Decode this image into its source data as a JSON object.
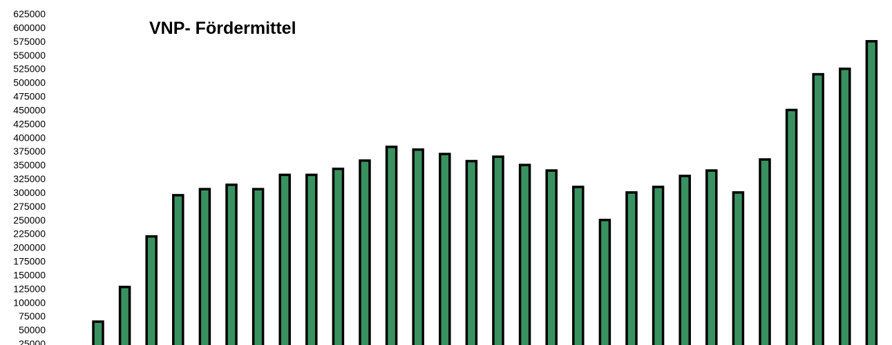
{
  "chart_data": {
    "type": "bar",
    "title": "VNP- Fördermittel",
    "xlabel": "",
    "ylabel": "",
    "ylim": [
      0,
      625000
    ],
    "y_ticks": [
      25000,
      50000,
      75000,
      100000,
      125000,
      150000,
      175000,
      200000,
      225000,
      250000,
      275000,
      300000,
      325000,
      350000,
      375000,
      400000,
      425000,
      450000,
      475000,
      500000,
      525000,
      550000,
      575000,
      600000,
      625000
    ],
    "grid": false,
    "legend": "none",
    "bar_color": "#3a9160",
    "bar_border_color": "#000000",
    "values": [
      65000,
      128000,
      220000,
      295000,
      306000,
      314000,
      306000,
      332000,
      332000,
      343000,
      358000,
      383000,
      378000,
      370000,
      357000,
      365000,
      350000,
      340000,
      310000,
      250000,
      300000,
      310000,
      330000,
      340000,
      300000,
      360000,
      450000,
      515000,
      525000,
      575000
    ]
  }
}
